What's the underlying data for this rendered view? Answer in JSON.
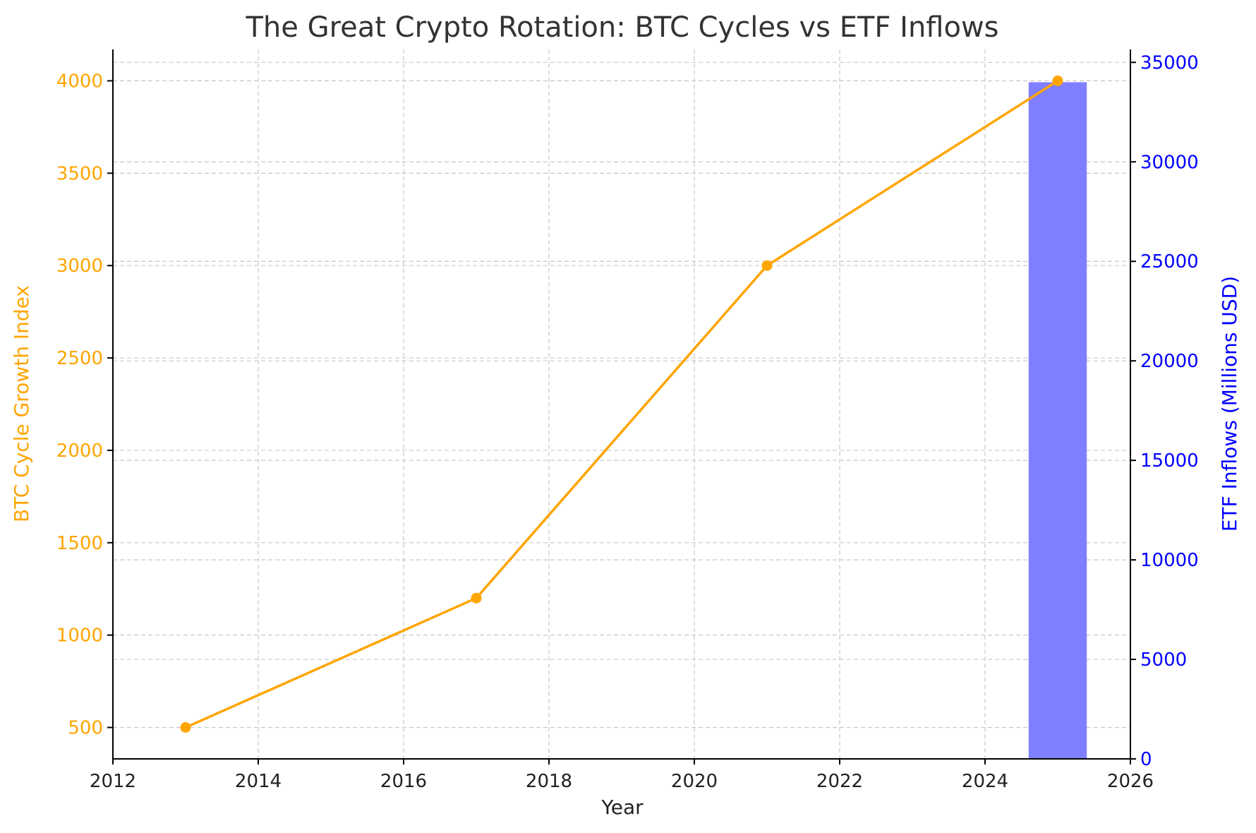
{
  "chart_data": {
    "type": "line",
    "title": "The Great Crypto Rotation: BTC Cycles vs ETF Inflows",
    "xlabel": "Year",
    "ylabel": "BTC Cycle Growth Index",
    "y2label": "ETF Inflows (Millions USD)",
    "xlim": [
      2012,
      2026
    ],
    "ylim": [
      330,
      4170
    ],
    "y2lim": [
      0,
      35650
    ],
    "x_ticks": [
      2012,
      2014,
      2016,
      2018,
      2020,
      2022,
      2024,
      2026
    ],
    "y_ticks": [
      500,
      1000,
      1500,
      2000,
      2500,
      3000,
      3500,
      4000
    ],
    "y2_ticks": [
      0,
      5000,
      10000,
      15000,
      20000,
      25000,
      30000,
      35000
    ],
    "grid": true,
    "series": [
      {
        "type": "line",
        "axis": "left",
        "x": [
          2013,
          2017,
          2021,
          2025
        ],
        "values": [
          500,
          1200,
          3000,
          4000
        ],
        "color": "#FFA500",
        "marker": "circle"
      },
      {
        "type": "bar",
        "axis": "right",
        "x": [
          2025
        ],
        "values": [
          34000
        ],
        "bar_width_years": 0.8,
        "color": "#7F7FFF"
      }
    ],
    "colors": {
      "left_axis": "#FFA500",
      "right_axis": "#0000FF",
      "title": "#333333"
    }
  }
}
